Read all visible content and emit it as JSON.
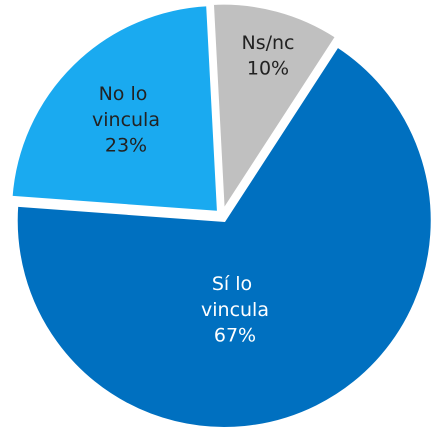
{
  "chart_data": {
    "type": "pie",
    "categories": [
      "Ns/nc",
      "Sí lo vincula",
      "No lo vincula"
    ],
    "values": [
      10,
      67,
      23
    ],
    "value_labels": [
      "10%",
      "67%",
      "23%"
    ],
    "colors": [
      "#c0c0c0",
      "#0070c0",
      "#1aaaf0"
    ]
  }
}
